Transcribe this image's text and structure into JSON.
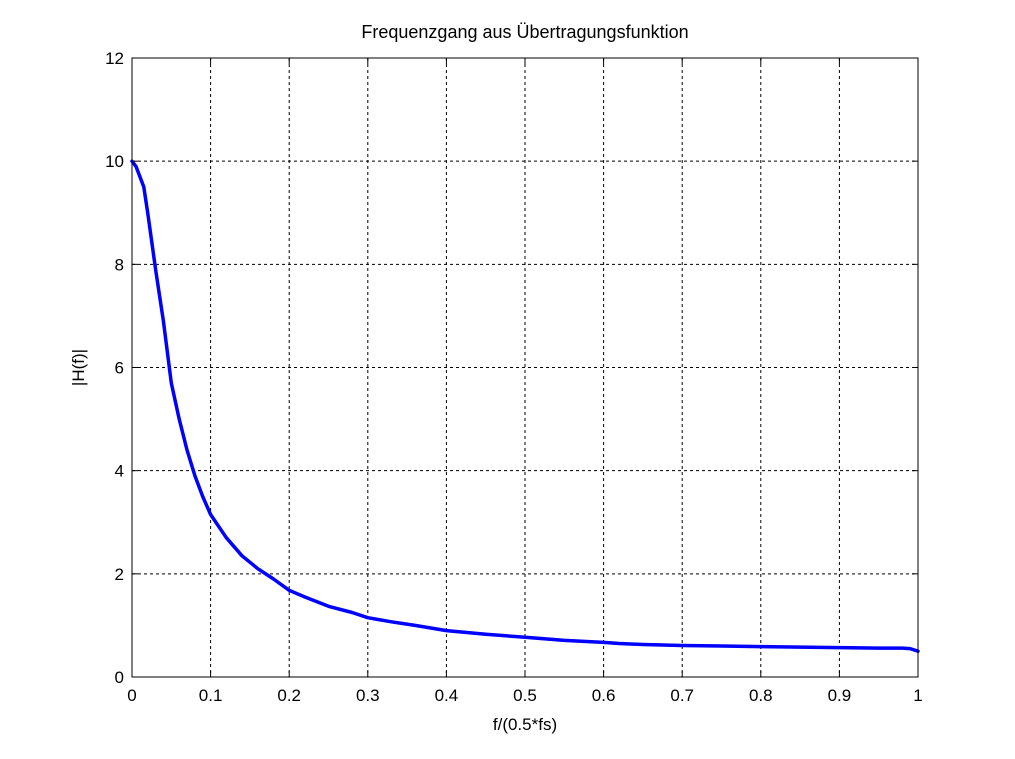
{
  "chart_data": {
    "type": "line",
    "title": "Frequenzgang aus Übertragungsfunktion",
    "xlabel": "f/(0.5*fs)",
    "ylabel": "|H(f)|",
    "xlim": [
      0,
      1
    ],
    "ylim": [
      0,
      12
    ],
    "xticks": [
      0,
      0.1,
      0.2,
      0.3,
      0.4,
      0.5,
      0.6,
      0.7,
      0.8,
      0.9,
      1
    ],
    "xtick_labels": [
      "0",
      "0.1",
      "0.2",
      "0.3",
      "0.4",
      "0.5",
      "0.6",
      "0.7",
      "0.8",
      "0.9",
      "1"
    ],
    "yticks": [
      0,
      2,
      4,
      6,
      8,
      10,
      12
    ],
    "ytick_labels": [
      "0",
      "2",
      "4",
      "6",
      "8",
      "10",
      "12"
    ],
    "grid": true,
    "grid_style": "dashed",
    "series": [
      {
        "color": "#0000ff",
        "x": [
          0,
          0.005,
          0.01,
          0.015,
          0.02,
          0.03,
          0.04,
          0.05,
          0.06,
          0.07,
          0.08,
          0.09,
          0.1,
          0.12,
          0.14,
          0.16,
          0.18,
          0.2,
          0.22,
          0.25,
          0.28,
          0.3,
          0.33,
          0.36,
          0.4,
          0.45,
          0.5,
          0.55,
          0.6,
          0.62,
          0.65,
          0.7,
          0.75,
          0.8,
          0.85,
          0.9,
          0.95,
          0.98,
          0.99,
          1.0
        ],
        "y": [
          10.0,
          9.9,
          9.7,
          9.5,
          9.0,
          7.9,
          6.9,
          5.7,
          5.0,
          4.4,
          3.9,
          3.5,
          3.15,
          2.7,
          2.35,
          2.1,
          1.9,
          1.68,
          1.55,
          1.37,
          1.25,
          1.15,
          1.07,
          1.0,
          0.9,
          0.83,
          0.77,
          0.71,
          0.67,
          0.65,
          0.63,
          0.61,
          0.6,
          0.59,
          0.58,
          0.57,
          0.56,
          0.56,
          0.55,
          0.5
        ]
      }
    ]
  }
}
